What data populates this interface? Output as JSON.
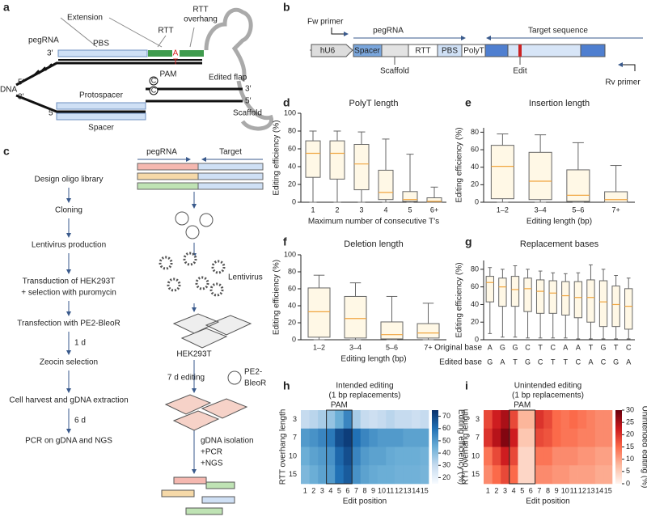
{
  "panel_labels": [
    "a",
    "b",
    "c",
    "d",
    "e",
    "f",
    "g",
    "h",
    "i"
  ],
  "diagram_a": {
    "extension": "Extension",
    "rtt_overhang": [
      "RTT",
      "overhang"
    ],
    "rtt": "RTT",
    "pegrna": "pegRNA",
    "pbs": "PBS",
    "three_prime": "3′",
    "five_prime": "5′",
    "edit_top": "A",
    "edit_bottom": "T",
    "c_base": "C",
    "pam": "PAM",
    "edited_flap": "Edited flap",
    "dna": "DNA",
    "protospacer": "Protospacer",
    "spacer": "Spacer",
    "scaffold": "Scaffold"
  },
  "diagram_b": {
    "fw_primer": "Fw primer",
    "pegrna": "pegRNA",
    "target": "Target sequence",
    "hu6": "hU6",
    "spacer": "Spacer",
    "rtt": "RTT",
    "pbs": "PBS",
    "polyt": "PolyT",
    "scaffold": "Scaffold",
    "edit": "Edit",
    "rv_primer": "Rv primer"
  },
  "workflow_c": {
    "steps": [
      "Design oligo library",
      "Cloning",
      "Lentivirus production",
      "Transduction of HEK293T",
      "+ selection with puromycin",
      "Transfection with PE2-BleoR",
      "Zeocin selection",
      "Cell harvest and gDNA extraction",
      "PCR on gDNA and NGS"
    ],
    "intervals": [
      "1 d",
      "6 d"
    ],
    "pegrna": "pegRNA",
    "target": "Target",
    "lentivirus": "Lentivirus",
    "cells": "HEK293T",
    "editing": "7 d editing",
    "plasmid": [
      "PE2-",
      "BleoR"
    ],
    "isolation": [
      "gDNA isolation",
      "+PCR",
      "+NGS"
    ]
  },
  "chart_data": [
    {
      "type": "box",
      "title": "PolyT length",
      "xlabel": "Maximum number of consecutive T's",
      "ylabel": "Editing efficiency (%)",
      "categories": [
        "1",
        "2",
        "3",
        "4",
        "5",
        "6+"
      ],
      "values": [
        [
          0,
          28,
          55,
          69,
          80
        ],
        [
          0,
          26,
          55,
          69,
          80
        ],
        [
          0,
          14,
          43,
          65,
          79
        ],
        [
          0,
          3,
          11,
          36,
          71
        ],
        [
          0,
          1,
          3,
          12,
          54
        ],
        [
          0,
          0,
          1,
          5,
          17
        ]
      ],
      "ylim": [
        0,
        100
      ],
      "yticks": [
        0,
        20,
        40,
        60,
        80,
        100
      ],
      "box_color": "#fff8e6",
      "median_color": "#f0a540"
    },
    {
      "type": "box",
      "title": "Insertion length",
      "xlabel": "Editing length (bp)",
      "ylabel": "Editing efficiency (%)",
      "categories": [
        "1–2",
        "3–4",
        "5–6",
        "7+"
      ],
      "values": [
        [
          0,
          4,
          41,
          65,
          78
        ],
        [
          0,
          3,
          24,
          57,
          77
        ],
        [
          0,
          1,
          8,
          37,
          68
        ],
        [
          0,
          0,
          3,
          12,
          42
        ]
      ],
      "ylim": [
        0,
        85
      ],
      "yticks": [
        0,
        20,
        40,
        60,
        80
      ],
      "box_color": "#fff8e6",
      "median_color": "#f0a540"
    },
    {
      "type": "box",
      "title": "Deletion length",
      "xlabel": "Editing length (bp)",
      "ylabel": "Editing efficiency (%)",
      "categories": [
        "1–2",
        "3–4",
        "5–6",
        "7+"
      ],
      "values": [
        [
          0,
          3,
          33,
          61,
          76
        ],
        [
          0,
          2,
          25,
          51,
          67
        ],
        [
          0,
          1,
          6,
          21,
          51
        ],
        [
          0,
          2,
          8,
          19,
          43
        ]
      ],
      "ylim": [
        0,
        100
      ],
      "yticks": [
        0,
        20,
        40,
        60,
        80,
        100
      ],
      "box_color": "#fff8e6",
      "median_color": "#f0a540"
    },
    {
      "type": "box",
      "title": "Replacement bases",
      "ylabel": "Editing efficiency (%)",
      "row_labels": [
        "Original base",
        "Edited base"
      ],
      "categories": [
        "A",
        "G",
        "G",
        "C",
        "T",
        "C",
        "A",
        "A",
        "T",
        "G",
        "T",
        "C"
      ],
      "edited_categories": [
        "G",
        "A",
        "T",
        "G",
        "C",
        "T",
        "T",
        "C",
        "A",
        "C",
        "G",
        "A"
      ],
      "values": [
        [
          7,
          43,
          65,
          72,
          82
        ],
        [
          3,
          38,
          60,
          70,
          80
        ],
        [
          3,
          38,
          57,
          72,
          84
        ],
        [
          2,
          32,
          58,
          70,
          80
        ],
        [
          2,
          30,
          55,
          68,
          78
        ],
        [
          2,
          30,
          53,
          67,
          76
        ],
        [
          2,
          28,
          50,
          66,
          75
        ],
        [
          1,
          25,
          48,
          66,
          76
        ],
        [
          1,
          20,
          48,
          68,
          85
        ],
        [
          1,
          15,
          43,
          67,
          80
        ],
        [
          1,
          15,
          40,
          61,
          73
        ],
        [
          1,
          12,
          38,
          58,
          70
        ]
      ],
      "ylim": [
        0,
        90
      ],
      "yticks": [
        0,
        20,
        40,
        60,
        80
      ],
      "box_color": "#fff8e6",
      "median_color": "#f0a540"
    },
    {
      "type": "heatmap",
      "title": "Intended editing",
      "subtitle": "(1 bp replacements)",
      "annotation": "PAM",
      "xlabel": "Edit position",
      "ylabel": "RTT overhang length",
      "colorbar_label": "Editing efficiency (%)",
      "x": [
        1,
        2,
        3,
        4,
        5,
        6,
        7,
        8,
        9,
        10,
        11,
        12,
        13,
        14,
        15
      ],
      "y": [
        3,
        7,
        10,
        15
      ],
      "values": [
        [
          30,
          32,
          35,
          38,
          45,
          55,
          35,
          30,
          28,
          30,
          32,
          30,
          30,
          28,
          30
        ],
        [
          50,
          52,
          55,
          58,
          68,
          72,
          60,
          55,
          52,
          50,
          50,
          50,
          48,
          48,
          48
        ],
        [
          45,
          48,
          50,
          52,
          62,
          68,
          55,
          50,
          48,
          48,
          46,
          45,
          45,
          45,
          44
        ],
        [
          42,
          45,
          48,
          50,
          60,
          65,
          52,
          48,
          46,
          45,
          45,
          44,
          44,
          44,
          43
        ]
      ],
      "clim": [
        15,
        75
      ],
      "cticks": [
        20,
        30,
        40,
        50,
        60,
        70
      ],
      "colormap": [
        "#f7fbff",
        "#c6dbef",
        "#6baed6",
        "#2171b5",
        "#08306b"
      ]
    },
    {
      "type": "heatmap",
      "title": "Unintended editing",
      "subtitle": "(1 bp replacements)",
      "annotation": "PAM",
      "xlabel": "Edit position",
      "ylabel": "RTT overhang length",
      "colorbar_label": "Unintended editing (%)",
      "x": [
        1,
        2,
        3,
        4,
        5,
        6,
        7,
        8,
        9,
        10,
        11,
        12,
        13,
        14,
        15
      ],
      "y": [
        3,
        7,
        10,
        15
      ],
      "values": [
        [
          18,
          22,
          25,
          18,
          8,
          8,
          20,
          18,
          15,
          14,
          15,
          14,
          13,
          12,
          12
        ],
        [
          20,
          24,
          28,
          22,
          6,
          6,
          18,
          17,
          15,
          14,
          14,
          13,
          13,
          12,
          12
        ],
        [
          14,
          18,
          22,
          18,
          4,
          4,
          14,
          14,
          12,
          12,
          12,
          11,
          11,
          10,
          10
        ],
        [
          12,
          15,
          18,
          15,
          4,
          4,
          12,
          12,
          11,
          11,
          10,
          10,
          10,
          9,
          9
        ]
      ],
      "clim": [
        0,
        30
      ],
      "cticks": [
        0,
        5,
        10,
        15,
        20,
        25,
        30
      ],
      "colormap": [
        "#fff5f0",
        "#fcbba1",
        "#fb6a4a",
        "#cb181d",
        "#67000d"
      ]
    }
  ]
}
